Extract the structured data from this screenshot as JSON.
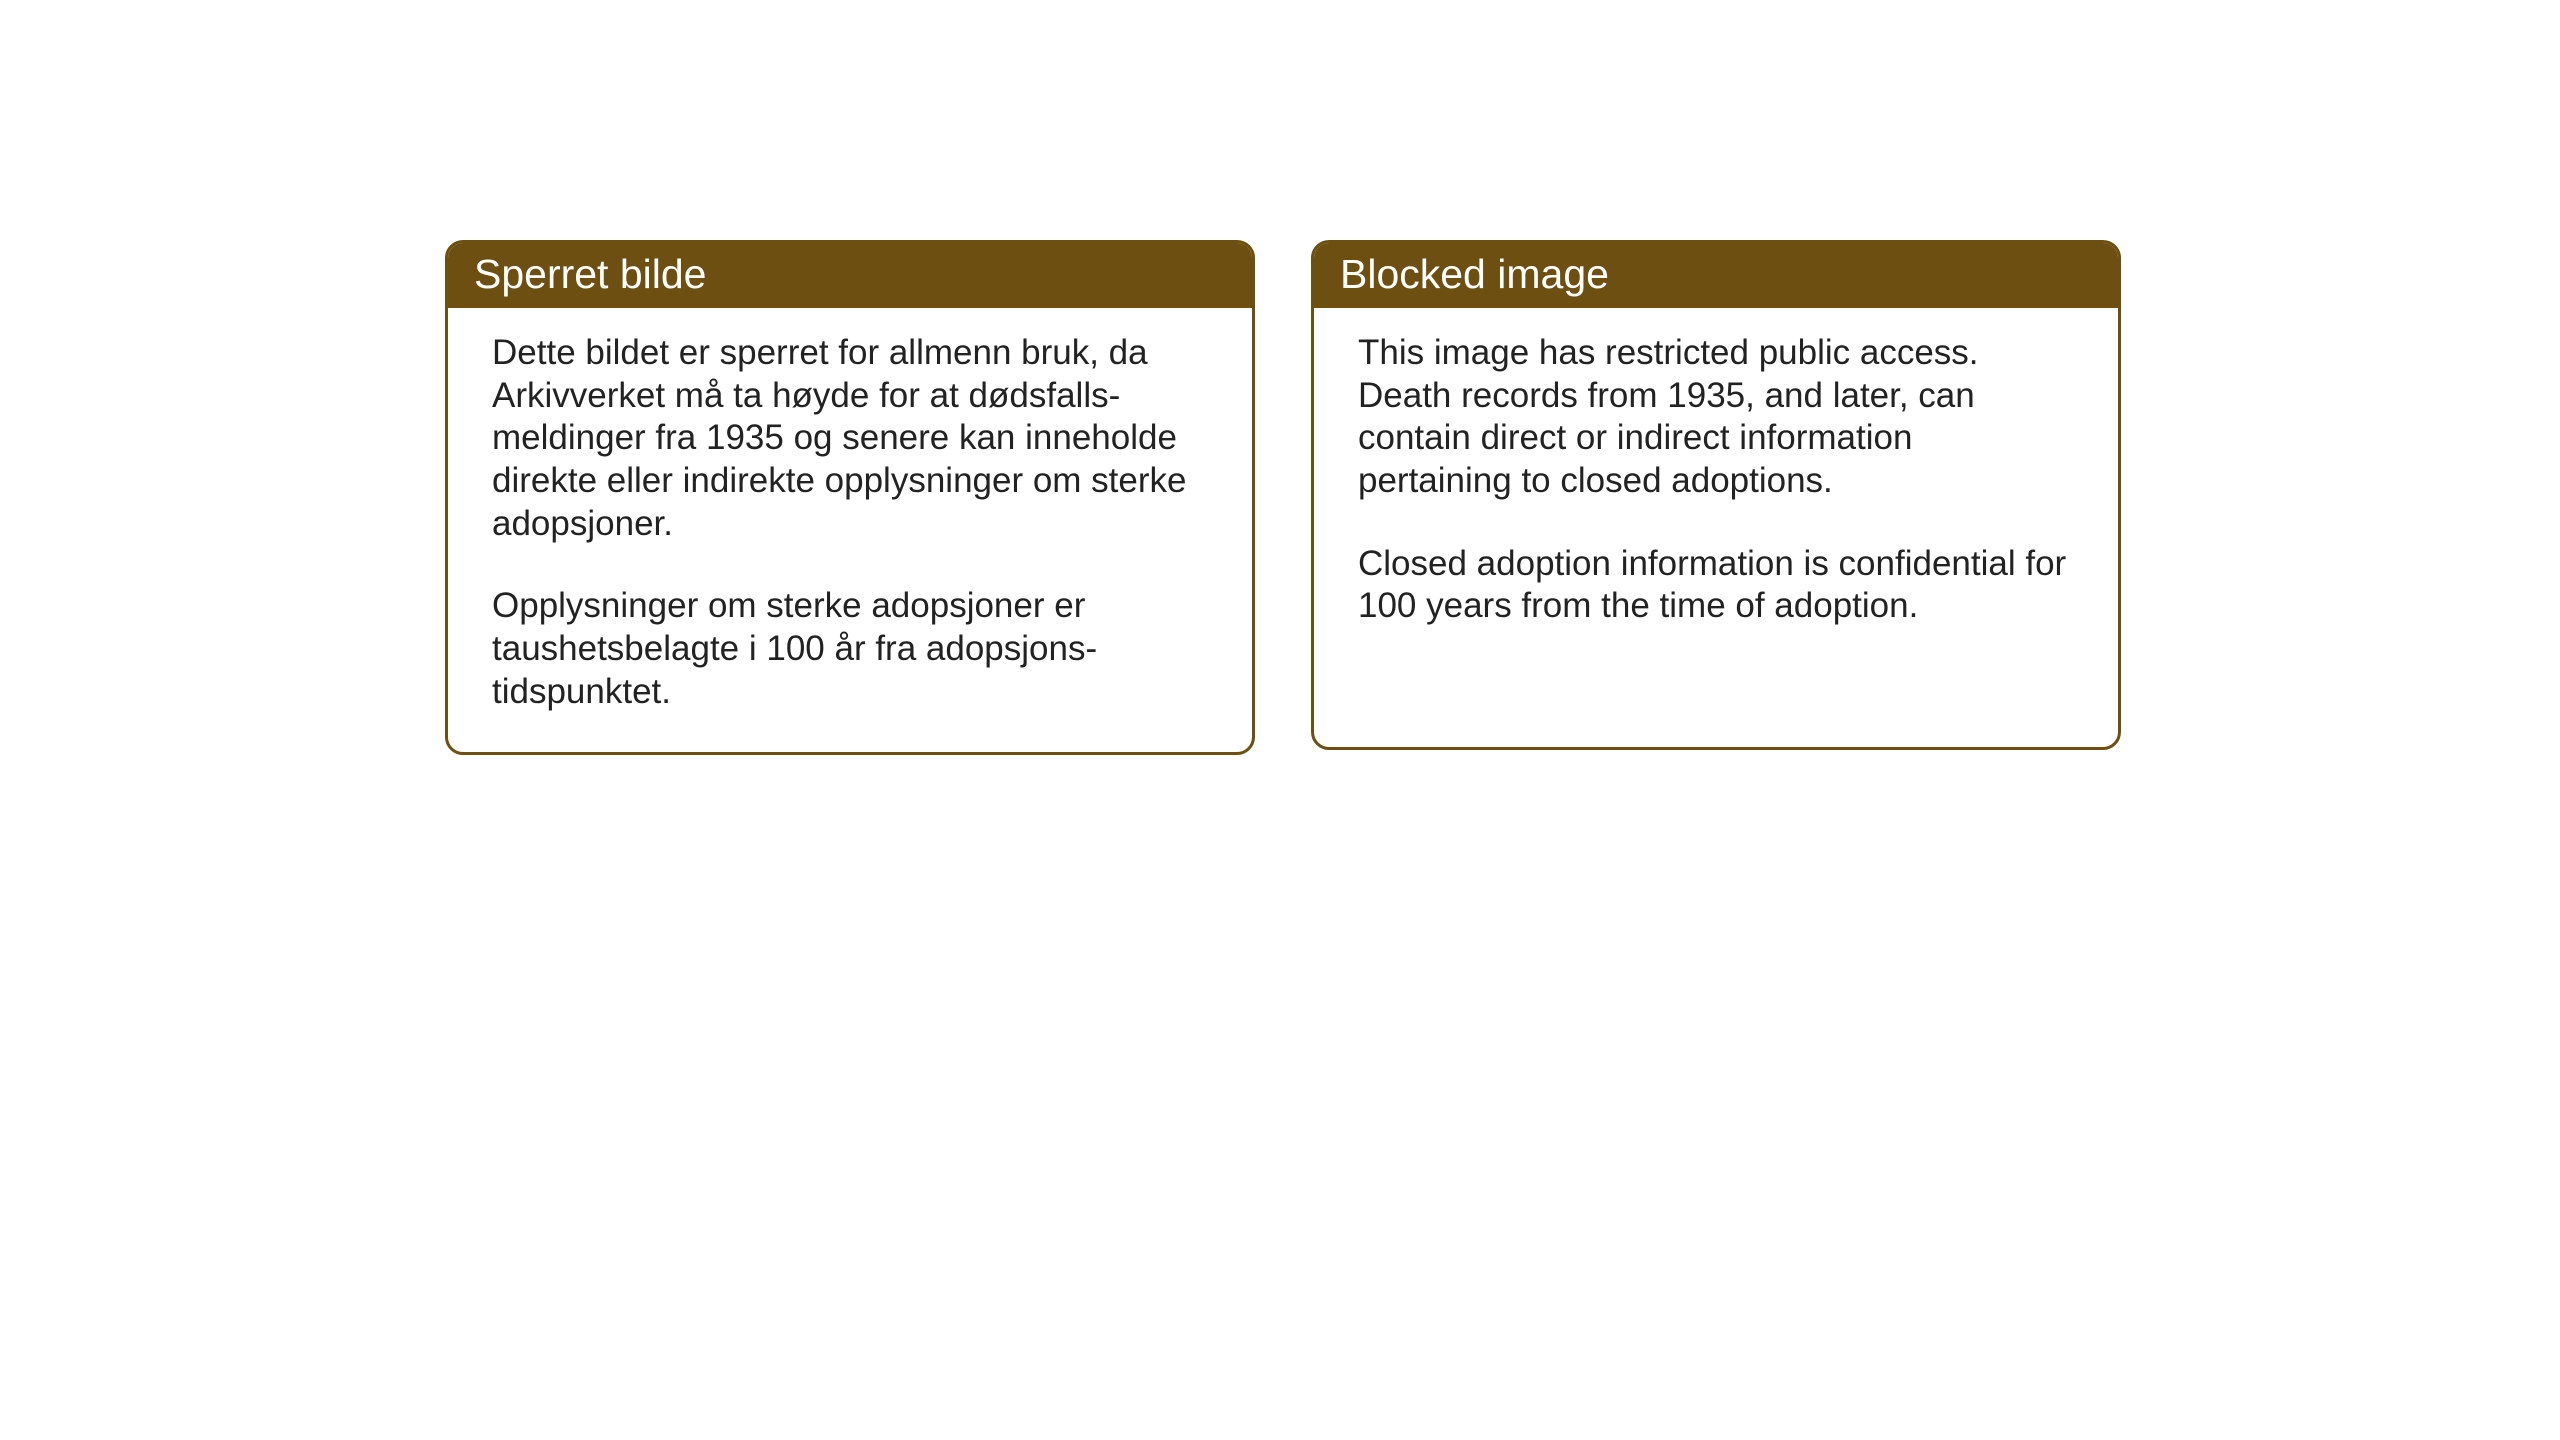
{
  "layout": {
    "background_color": "#ffffff",
    "card_border_color": "#6d4f11",
    "card_border_width": 3,
    "card_border_radius": 18,
    "header_bg_color": "#6d4f11",
    "header_text_color": "#ffffff",
    "body_text_color": "#222222",
    "header_fontsize": 41,
    "body_fontsize": 35
  },
  "cards": {
    "norwegian": {
      "title": "Sperret bilde",
      "paragraph1": "Dette bildet er sperret for allmenn bruk, da Arkivverket må ta høyde for at dødsfalls-meldinger fra 1935 og senere kan inneholde direkte eller indirekte opplysninger om sterke adopsjoner.",
      "paragraph2": "Opplysninger om sterke adopsjoner er taushetsbelagte i 100 år fra adopsjons-tidspunktet."
    },
    "english": {
      "title": "Blocked image",
      "paragraph1": "This image has restricted public access. Death records from 1935, and later, can contain direct or indirect information pertaining to closed adoptions.",
      "paragraph2": "Closed adoption information is confidential for 100 years from the time of adoption."
    }
  }
}
